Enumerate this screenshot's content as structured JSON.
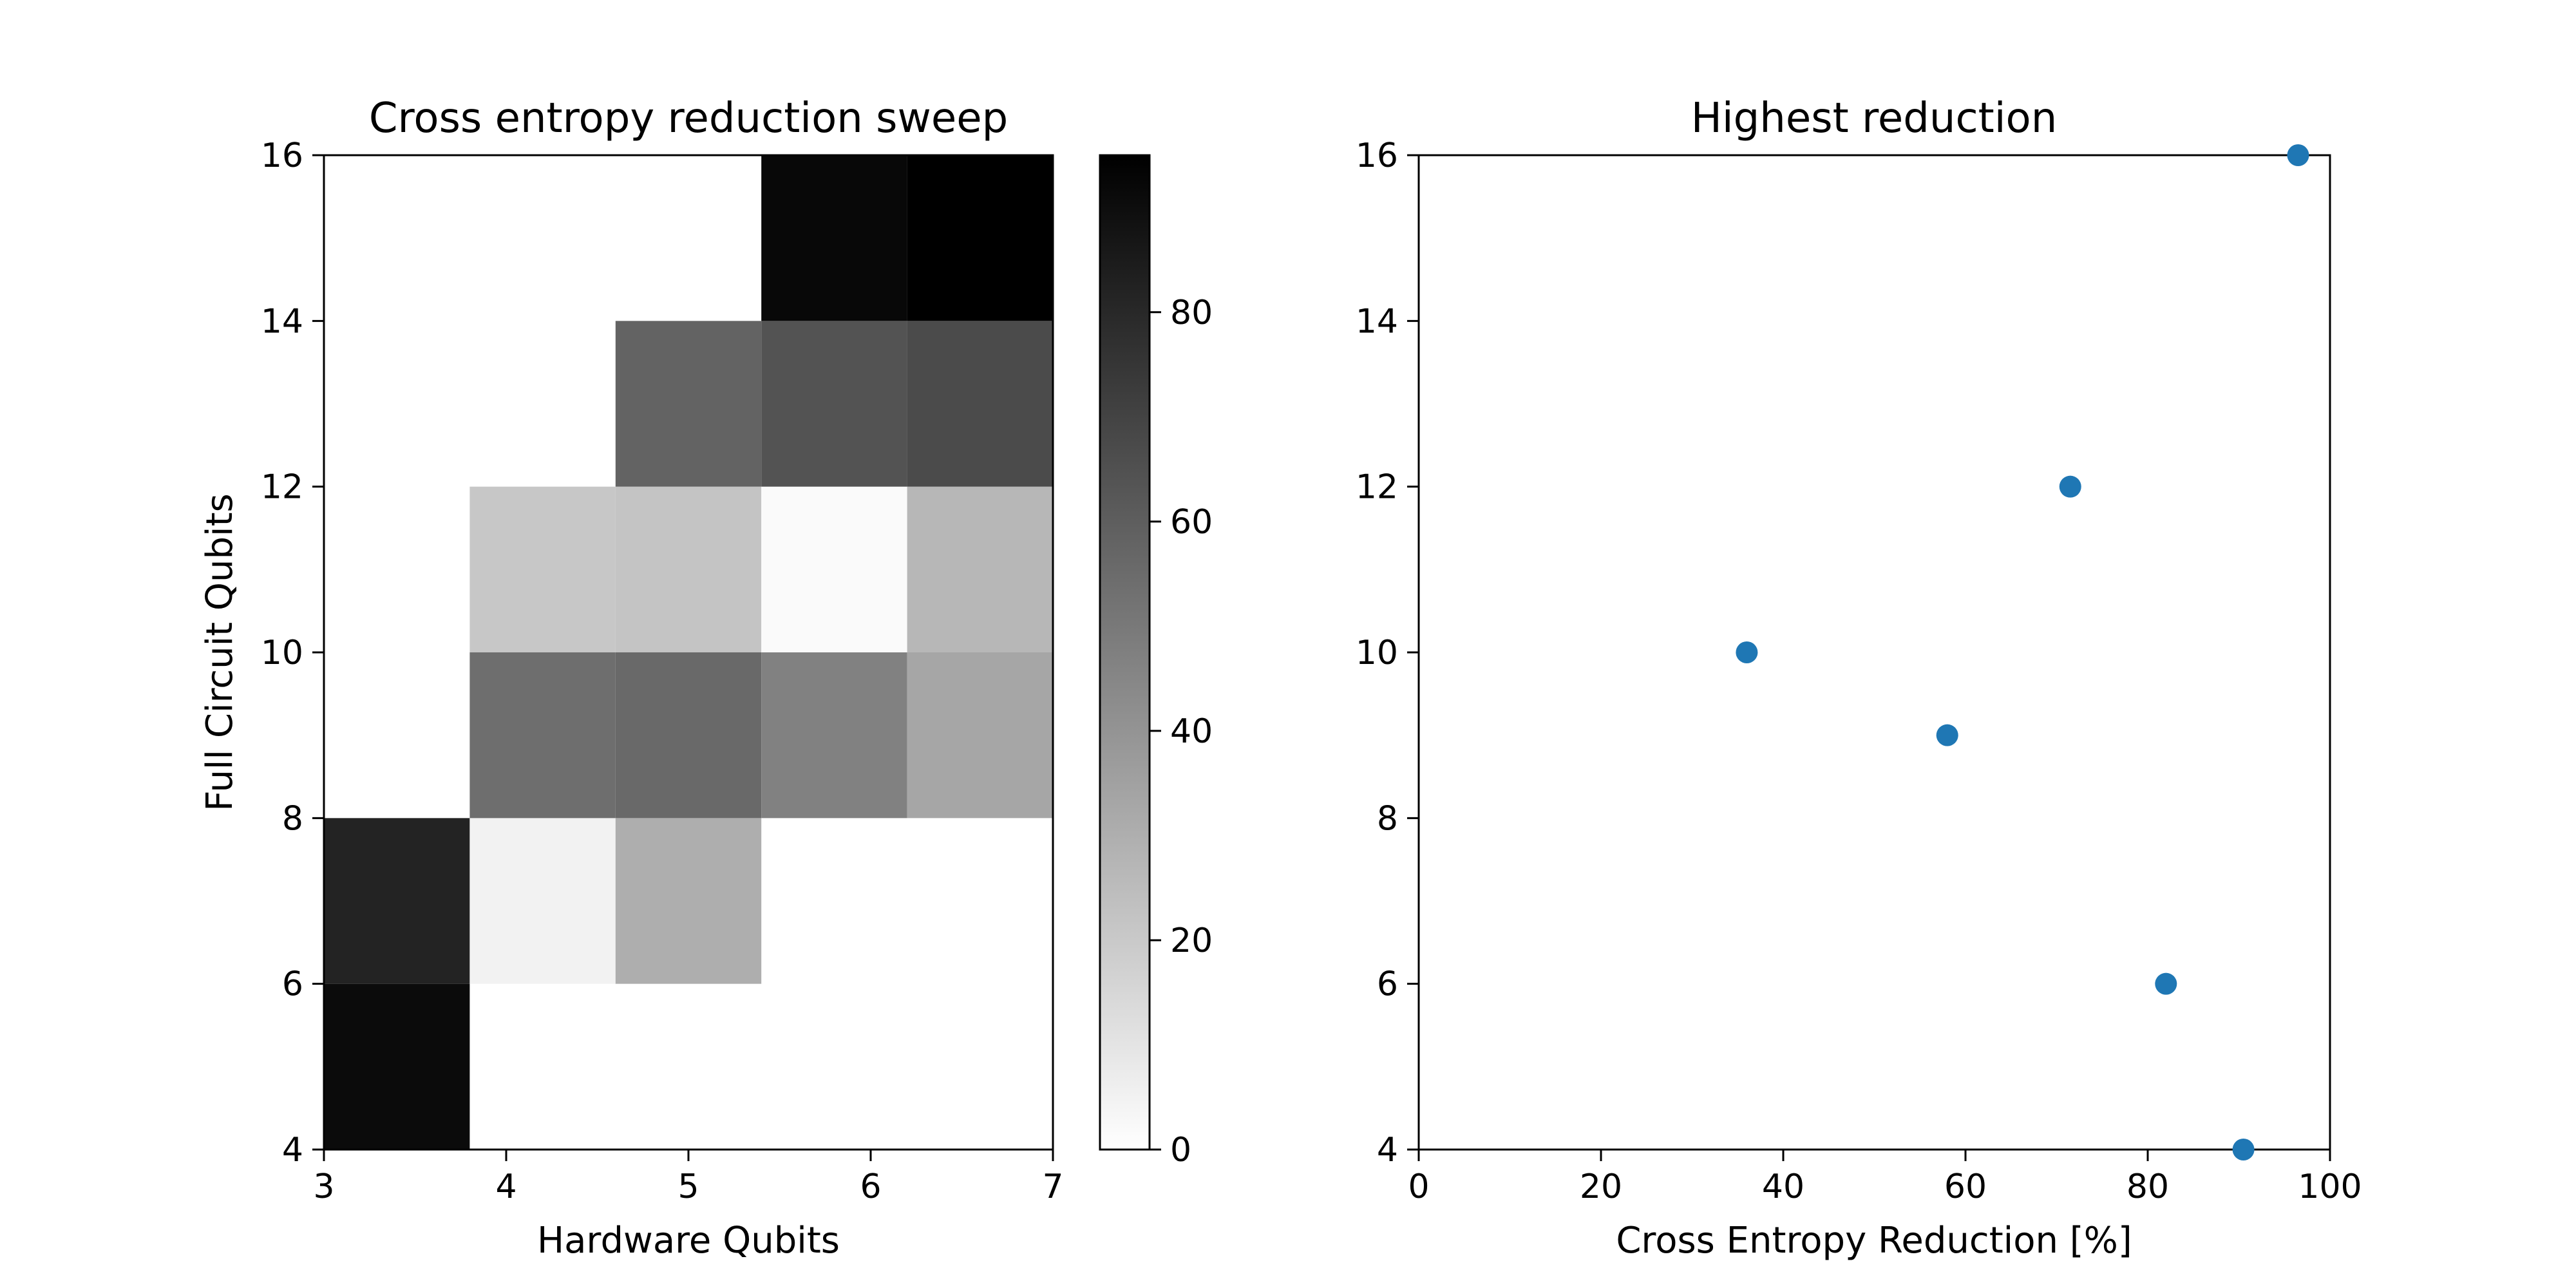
{
  "chart_data": [
    {
      "type": "heatmap",
      "title": "Cross entropy reduction sweep",
      "xlabel": "Hardware Qubits",
      "ylabel": "Full Circuit Qubits",
      "xlim": [
        3,
        7
      ],
      "ylim": [
        4,
        16
      ],
      "xticks": [
        3,
        4,
        5,
        6,
        7
      ],
      "yticks": [
        4,
        6,
        8,
        10,
        12,
        14,
        16
      ],
      "colormap": "gray_r",
      "colorbar": {
        "min": 0,
        "max": 95,
        "ticks": [
          0,
          20,
          40,
          60,
          80
        ]
      },
      "x_edges": [
        3,
        3.8,
        4.6,
        5.4,
        6.2,
        7.0
      ],
      "y_edges": [
        4,
        6,
        8,
        10,
        12,
        14,
        16
      ],
      "values": [
        [
          91,
          null,
          null,
          null,
          null
        ],
        [
          82,
          5,
          30,
          null,
          null
        ],
        [
          null,
          54,
          56,
          47,
          33
        ],
        [
          null,
          21,
          22,
          2,
          27
        ],
        [
          null,
          null,
          58,
          64,
          67
        ],
        [
          null,
          null,
          null,
          92,
          95
        ]
      ]
    },
    {
      "type": "scatter",
      "title": "Highest reduction",
      "xlabel": "Cross Entropy Reduction [%]",
      "ylabel": "",
      "xlim": [
        0,
        100
      ],
      "ylim": [
        4,
        16
      ],
      "xticks": [
        0,
        20,
        40,
        60,
        80,
        100
      ],
      "yticks": [
        4,
        6,
        8,
        10,
        12,
        14,
        16
      ],
      "marker_color": "#1f77b4",
      "points": [
        {
          "x": 90.5,
          "y": 4
        },
        {
          "x": 82,
          "y": 6
        },
        {
          "x": 58,
          "y": 9
        },
        {
          "x": 36,
          "y": 10
        },
        {
          "x": 71.5,
          "y": 12
        },
        {
          "x": 96.5,
          "y": 16
        }
      ]
    }
  ]
}
